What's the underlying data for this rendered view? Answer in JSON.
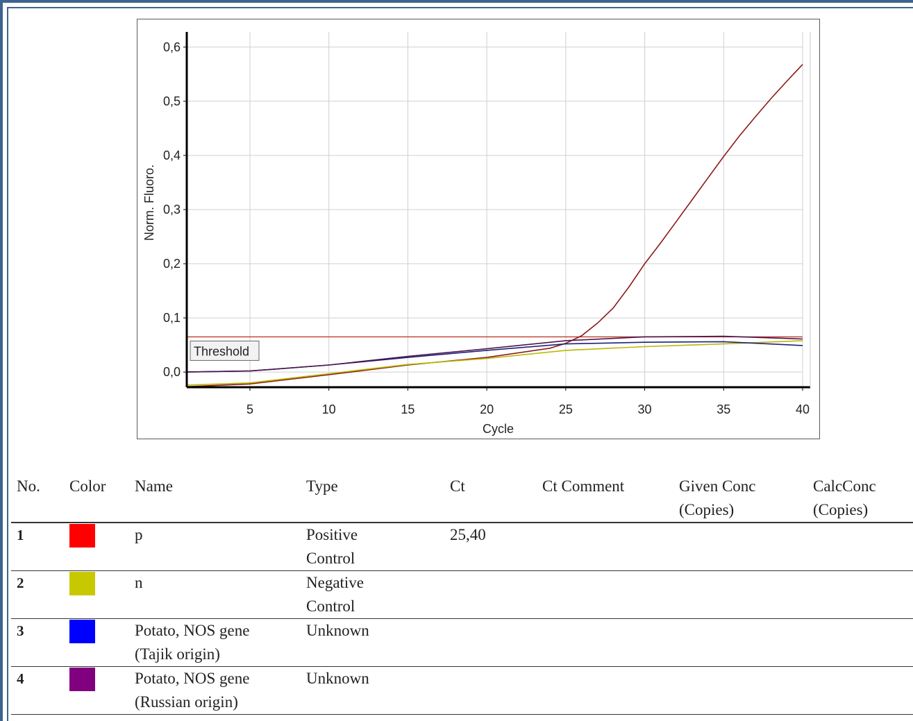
{
  "chart_data": {
    "type": "line",
    "xlabel": "Cycle",
    "ylabel": "Norm. Fluoro.",
    "xlim": [
      1,
      40
    ],
    "ylim": [
      -0.028,
      0.628
    ],
    "xticks": [
      5,
      10,
      15,
      20,
      25,
      30,
      35,
      40
    ],
    "yticks": [
      0.0,
      0.1,
      0.2,
      0.3,
      0.4,
      0.5,
      0.6
    ],
    "xtick_labels": [
      "5",
      "10",
      "15",
      "20",
      "25",
      "30",
      "35",
      "40"
    ],
    "ytick_labels": [
      "0,0",
      "0,1",
      "0,2",
      "0,3",
      "0,4",
      "0,5",
      "0,6"
    ],
    "grid": true,
    "threshold": {
      "label": "Threshold",
      "value": 0.065,
      "color": "#c0392b"
    },
    "series": [
      {
        "color": "#8b1a1a",
        "x": [
          1,
          5,
          10,
          15,
          20,
          24,
          25,
          26,
          27,
          28,
          29,
          30,
          31,
          32,
          33,
          34,
          35,
          36,
          37,
          38,
          39,
          40
        ],
        "y": [
          -0.027,
          -0.022,
          -0.005,
          0.013,
          0.027,
          0.044,
          0.053,
          0.067,
          0.09,
          0.118,
          0.157,
          0.2,
          0.238,
          0.278,
          0.318,
          0.358,
          0.398,
          0.436,
          0.471,
          0.505,
          0.537,
          0.568
        ]
      },
      {
        "color": "#b8b800",
        "x": [
          1,
          5,
          10,
          15,
          20,
          25,
          30,
          35,
          40
        ],
        "y": [
          -0.024,
          -0.02,
          -0.003,
          0.014,
          0.025,
          0.04,
          0.047,
          0.052,
          0.058
        ]
      },
      {
        "color": "#1f1f7a",
        "x": [
          1,
          5,
          10,
          15,
          20,
          25,
          30,
          35,
          40
        ],
        "y": [
          0.0,
          0.002,
          0.013,
          0.027,
          0.04,
          0.052,
          0.055,
          0.056,
          0.049
        ]
      },
      {
        "color": "#4b164b",
        "x": [
          1,
          5,
          10,
          15,
          20,
          25,
          30,
          35,
          40
        ],
        "y": [
          0.0,
          0.002,
          0.013,
          0.029,
          0.043,
          0.058,
          0.065,
          0.066,
          0.061
        ]
      }
    ]
  },
  "table": {
    "headers": {
      "no": "No.",
      "color": "Color",
      "name": "Name",
      "type": "Type",
      "ct": "Ct",
      "ct_comment": "Ct Comment",
      "given_conc_1": "Given Conc",
      "given_conc_2": "(Copies)",
      "calc_conc_1": "CalcConc",
      "calc_conc_2": "(Copies)"
    },
    "rows": [
      {
        "no": "1",
        "color": "#ff0000",
        "name_1": "p",
        "name_2": "",
        "type_1": "Positive",
        "type_2": "Control",
        "ct": "25,40",
        "ct_comment": "",
        "given_conc": "",
        "calc_conc": ""
      },
      {
        "no": "2",
        "color": "#c8c800",
        "name_1": "n",
        "name_2": "",
        "type_1": "Negative",
        "type_2": "Control",
        "ct": "",
        "ct_comment": "",
        "given_conc": "",
        "calc_conc": ""
      },
      {
        "no": "3",
        "color": "#0000ff",
        "name_1": "Potato, NOS gene",
        "name_2": "(Tajik origin)",
        "type_1": "Unknown",
        "type_2": "",
        "ct": "",
        "ct_comment": "",
        "given_conc": "",
        "calc_conc": ""
      },
      {
        "no": "4",
        "color": "#800080",
        "name_1": "Potato, NOS gene",
        "name_2": "(Russian origin)",
        "type_1": "Unknown",
        "type_2": "",
        "ct": "",
        "ct_comment": "",
        "given_conc": "",
        "calc_conc": ""
      }
    ]
  }
}
